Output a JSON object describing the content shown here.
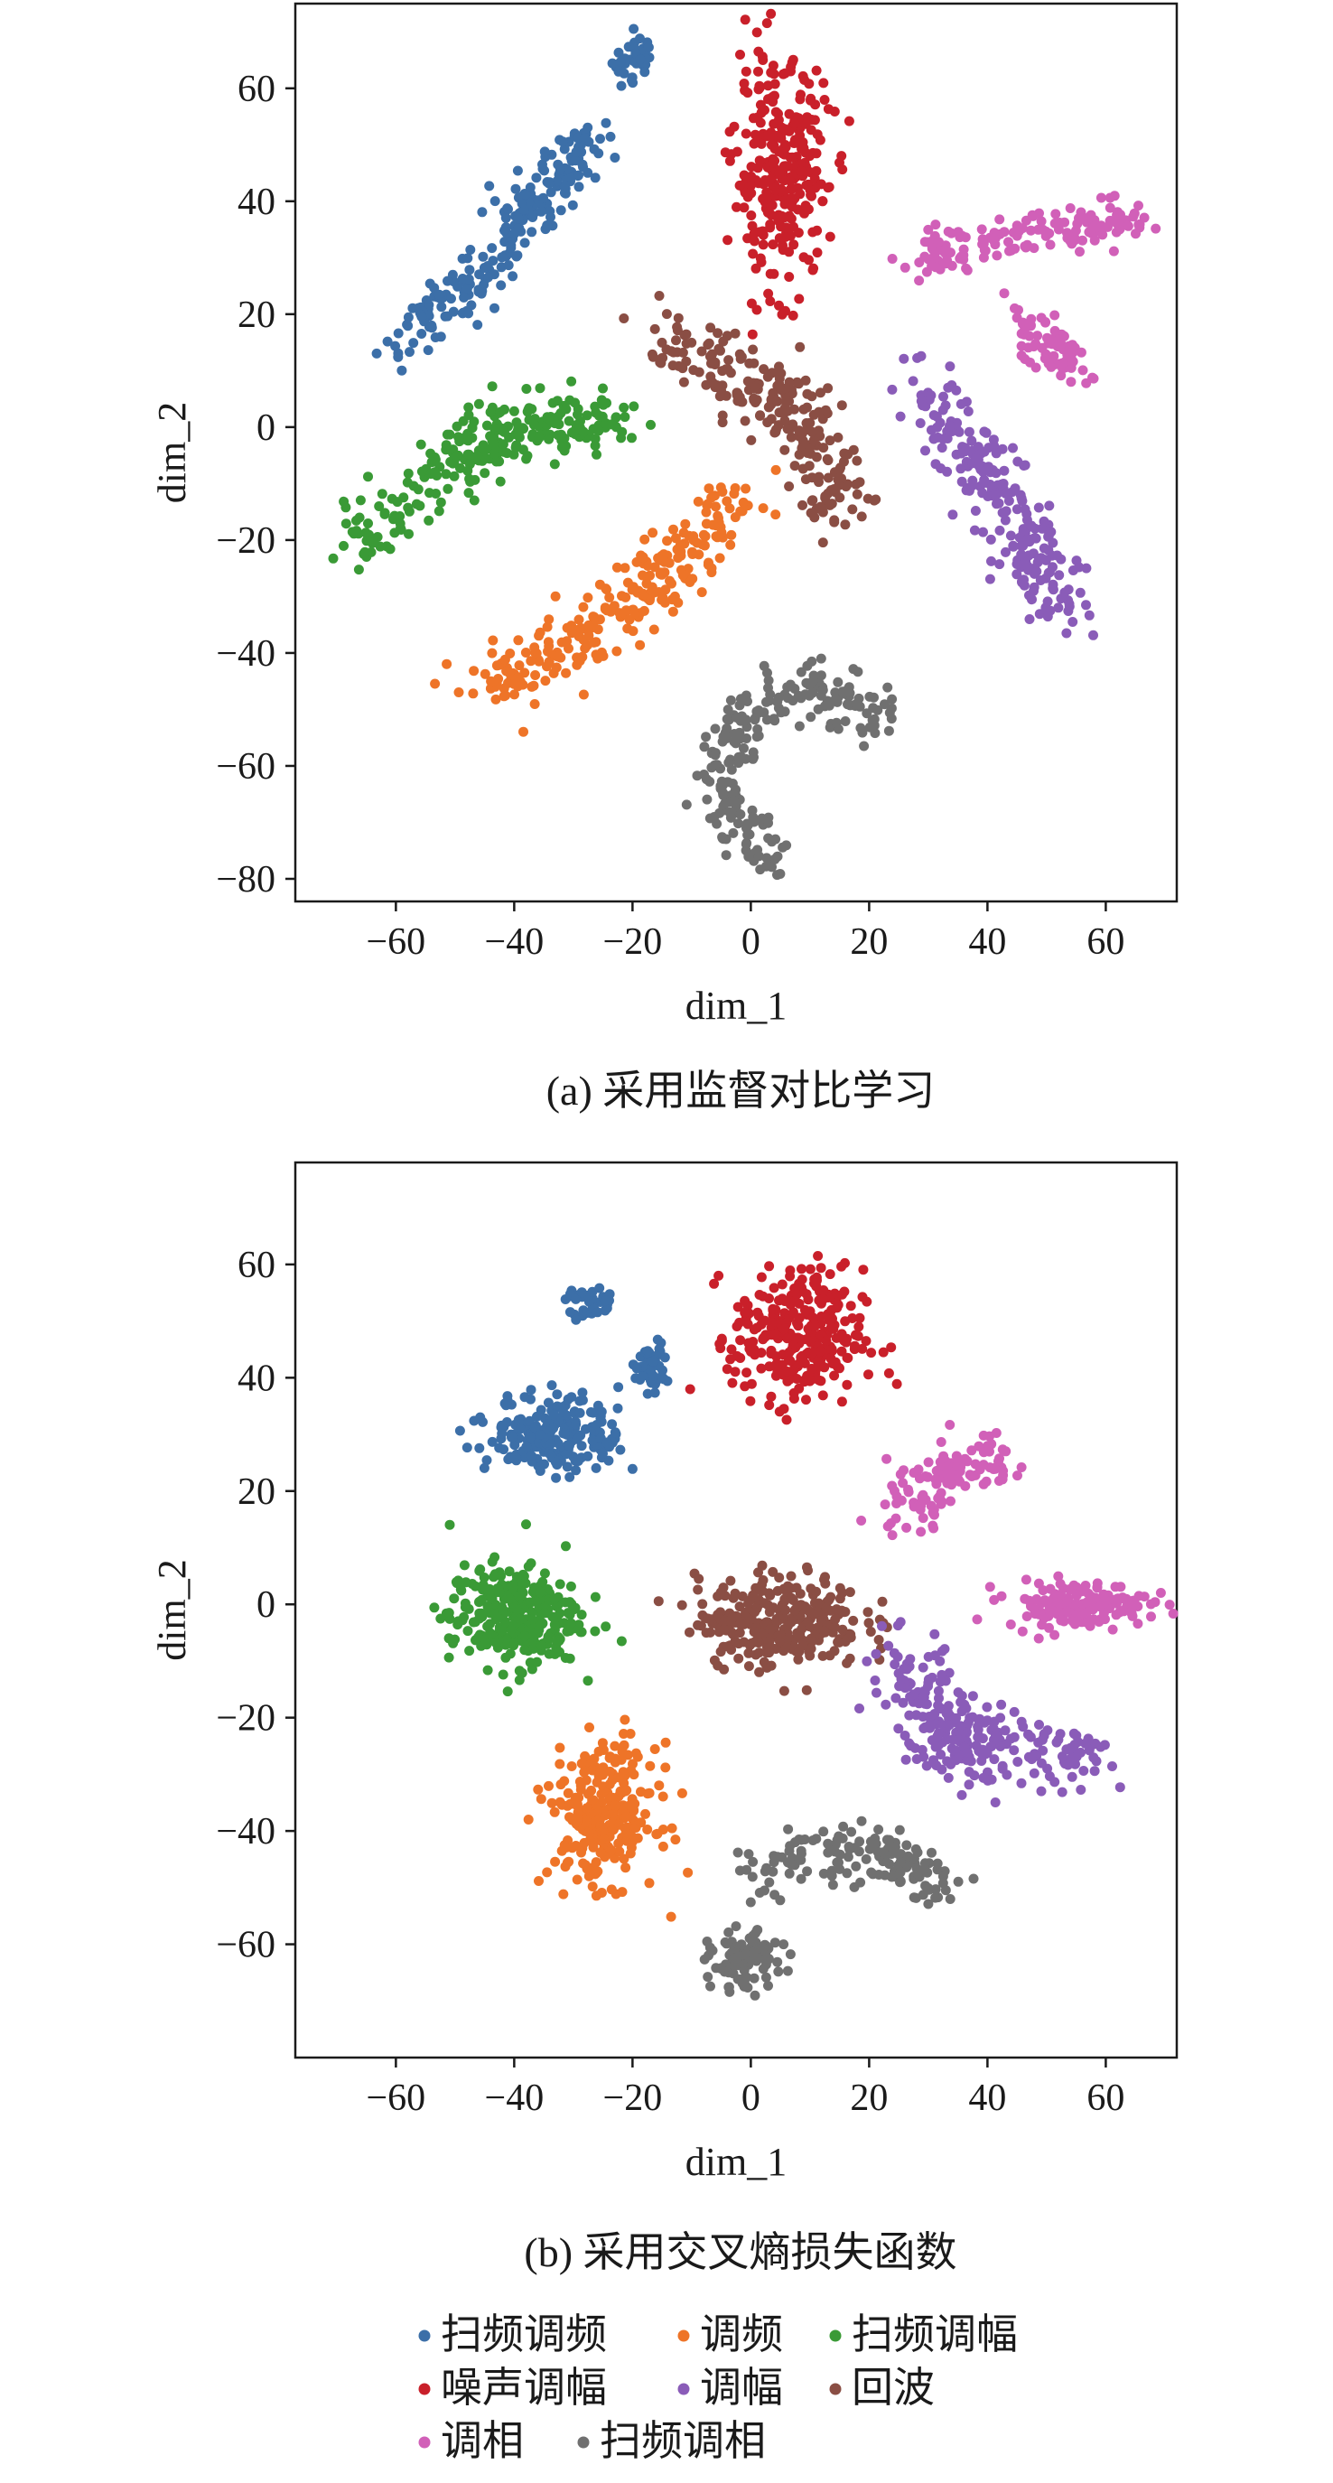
{
  "figure": {
    "captions": [
      "(a) 采用监督对比学习",
      "(b) 采用交叉熵损失函数"
    ]
  },
  "legend": {
    "entries": [
      {
        "label": "扫频调频",
        "color": "#3c6fa8"
      },
      {
        "label": "调频",
        "color": "#ee7428"
      },
      {
        "label": "扫频调幅",
        "color": "#3a9a36"
      },
      {
        "label": "噪声调幅",
        "color": "#c9202a"
      },
      {
        "label": "调幅",
        "color": "#8a5cb8"
      },
      {
        "label": "回波",
        "color": "#8a4e44"
      },
      {
        "label": "调相",
        "color": "#d160b8"
      },
      {
        "label": "扫频调相",
        "color": "#707070"
      }
    ]
  },
  "chart_data": [
    {
      "type": "scatter",
      "caption": "(a) 采用监督对比学习",
      "xlabel": "dim_1",
      "ylabel": "dim_2",
      "xlim": [
        -77,
        72
      ],
      "ylim": [
        -84,
        75
      ],
      "xticks": [
        -60,
        -40,
        -20,
        0,
        20,
        40,
        60
      ],
      "yticks": [
        60,
        40,
        20,
        0,
        -20,
        -40,
        -60,
        -80
      ],
      "grid": false,
      "clusters": [
        {
          "class": "扫频调频",
          "shape": "line",
          "path": [
            [
              -58,
              15
            ],
            [
              -45,
              28
            ],
            [
              -35,
              42
            ],
            [
              -26,
              51
            ]
          ],
          "spread": 2.5,
          "n": 220
        },
        {
          "class": "扫频调频",
          "shape": "line",
          "path": [
            [
              -22,
              62
            ],
            [
              -18,
              67
            ]
          ],
          "spread": 1.5,
          "n": 40
        },
        {
          "class": "噪声调幅",
          "shape": "blob",
          "center": [
            5,
            45
          ],
          "radius": [
            8,
            19
          ],
          "n": 300
        },
        {
          "class": "调相",
          "shape": "line",
          "path": [
            [
              28,
              30
            ],
            [
              42,
              33
            ],
            [
              56,
              36
            ],
            [
              66,
              37
            ]
          ],
          "spread": 2,
          "n": 160
        },
        {
          "class": "调相",
          "shape": "line",
          "path": [
            [
              45,
              20
            ],
            [
              55,
              10
            ]
          ],
          "spread": 2,
          "n": 70
        },
        {
          "class": "回波",
          "shape": "line",
          "path": [
            [
              -15,
              15
            ],
            [
              0,
              8
            ],
            [
              10,
              0
            ],
            [
              15,
              -15
            ]
          ],
          "spread": 3,
          "n": 230
        },
        {
          "class": "扫频调幅",
          "shape": "line",
          "path": [
            [
              -20,
              2
            ],
            [
              -38,
              0
            ],
            [
              -50,
              -5
            ],
            [
              -68,
              -22
            ]
          ],
          "spread": 2.8,
          "n": 260
        },
        {
          "class": "调幅",
          "shape": "line",
          "path": [
            [
              28,
              7
            ],
            [
              40,
              -8
            ],
            [
              48,
              -22
            ],
            [
              53,
              -33
            ]
          ],
          "spread": 3,
          "n": 230
        },
        {
          "class": "调频",
          "shape": "line",
          "path": [
            [
              -45,
              -47
            ],
            [
              -30,
              -37
            ],
            [
              -15,
              -27
            ],
            [
              -2,
              -13
            ]
          ],
          "spread": 3,
          "n": 260
        },
        {
          "class": "扫频调相",
          "shape": "arc",
          "center": [
            10,
            -62
          ],
          "radius": 15,
          "angles": [
            40,
            250
          ],
          "spread": 2.5,
          "n": 240
        }
      ]
    },
    {
      "type": "scatter",
      "caption": "(b) 采用交叉熵损失函数",
      "xlabel": "dim_1",
      "ylabel": "dim_2",
      "xlim": [
        -77,
        72
      ],
      "ylim": [
        -80,
        78
      ],
      "xticks": [
        -60,
        -40,
        -20,
        0,
        20,
        40,
        60
      ],
      "yticks": [
        60,
        40,
        20,
        0,
        -20,
        -40,
        -60
      ],
      "grid": false,
      "clusters": [
        {
          "class": "扫频调频",
          "shape": "blob",
          "center": [
            -33,
            30
          ],
          "radius": [
            11,
            7
          ],
          "n": 220
        },
        {
          "class": "扫频调频",
          "shape": "blob",
          "center": [
            -17,
            42
          ],
          "radius": [
            3,
            4
          ],
          "n": 50
        },
        {
          "class": "扫频调频",
          "shape": "blob",
          "center": [
            -27,
            53
          ],
          "radius": [
            4,
            3
          ],
          "n": 35
        },
        {
          "class": "噪声调幅",
          "shape": "blob",
          "center": [
            8,
            47
          ],
          "radius": [
            11,
            12
          ],
          "n": 300
        },
        {
          "class": "调相",
          "shape": "line",
          "path": [
            [
              25,
              15
            ],
            [
              33,
              23
            ],
            [
              42,
              27
            ]
          ],
          "spread": 3,
          "n": 120
        },
        {
          "class": "调相",
          "shape": "blob",
          "center": [
            55,
            0
          ],
          "radius": [
            12,
            4
          ],
          "n": 150
        },
        {
          "class": "扫频调幅",
          "shape": "blob",
          "center": [
            -40,
            -2
          ],
          "radius": [
            11,
            9
          ],
          "n": 300
        },
        {
          "class": "回波",
          "shape": "blob",
          "center": [
            5,
            -3
          ],
          "radius": [
            14,
            8
          ],
          "n": 300
        },
        {
          "class": "调幅",
          "shape": "line",
          "path": [
            [
              25,
              -10
            ],
            [
              35,
              -25
            ],
            [
              58,
              -27
            ]
          ],
          "spread": 3.5,
          "n": 260
        },
        {
          "class": "调频",
          "shape": "blob",
          "center": [
            -25,
            -37
          ],
          "radius": [
            9,
            12
          ],
          "n": 280
        },
        {
          "class": "扫频调相",
          "shape": "line",
          "path": [
            [
              0,
              -47
            ],
            [
              20,
              -43
            ],
            [
              32,
              -50
            ]
          ],
          "spread": 2.5,
          "n": 150
        },
        {
          "class": "扫频调相",
          "shape": "blob",
          "center": [
            -1,
            -63
          ],
          "radius": [
            6,
            5
          ],
          "n": 100
        }
      ]
    }
  ]
}
